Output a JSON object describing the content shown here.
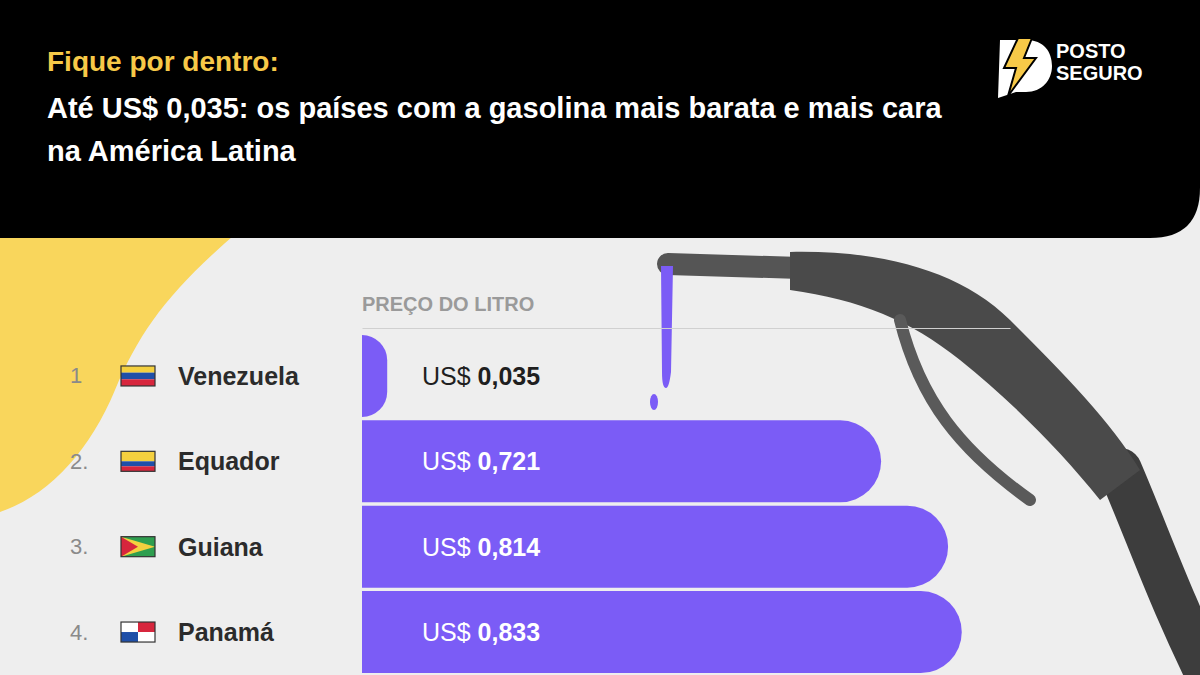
{
  "chart_data": {
    "type": "bar",
    "orientation": "horizontal",
    "subtitle": "Fique por dentro:",
    "title": "Até US$ 0,035: os países com a gasolina mais barata e mais cara na América Latina",
    "xlabel": "PREÇO DO LITRO",
    "categories": [
      "Venezuela",
      "Equador",
      "Guiana",
      "Panamá"
    ],
    "rank_labels": [
      "1",
      "2.",
      "3.",
      "4."
    ],
    "values": [
      0.035,
      0.721,
      0.814,
      0.833
    ],
    "value_labels": [
      "US$ 0,035",
      "US$ 0,721",
      "US$ 0,814",
      "US$ 0,833"
    ],
    "data_labels": true,
    "color": "#7b5cf6",
    "xlim": [
      0,
      0.9
    ],
    "xticks": [],
    "tick_labels": "y",
    "grid": false
  },
  "brand": [
    "POSTO",
    "SEGURO"
  ]
}
